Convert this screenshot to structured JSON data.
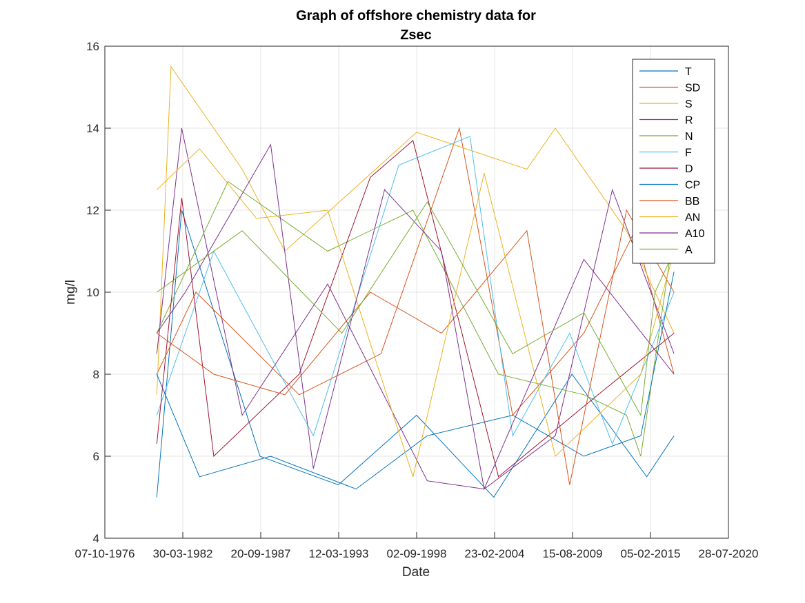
{
  "chart_data": {
    "type": "line",
    "title": [
      "Graph of offshore chemistry data for",
      "Zsec"
    ],
    "xlabel": "Date",
    "ylabel": "mg/l",
    "xlim": [
      "07-10-1976",
      "28-07-2020"
    ],
    "ylim": [
      4,
      16
    ],
    "x_ticks": [
      "07-10-1976",
      "30-03-1982",
      "20-09-1987",
      "12-03-1993",
      "02-09-1998",
      "23-02-2004",
      "15-08-2009",
      "05-02-2015",
      "28-07-2020"
    ],
    "y_ticks": [
      4,
      6,
      8,
      10,
      12,
      14,
      16
    ],
    "grid": true,
    "legend_position": "top-right",
    "series": [
      {
        "name": "T",
        "color": "#0072BD",
        "x": [
          "01-06-1980",
          "01-03-1982",
          "01-09-1987",
          "01-03-1993",
          "01-09-1998",
          "01-02-2004",
          "01-08-2009",
          "01-11-2014",
          "01-10-2016"
        ],
        "y": [
          5.0,
          12.0,
          6.0,
          5.3,
          7.0,
          5.0,
          8.0,
          5.5,
          6.5
        ]
      },
      {
        "name": "SD",
        "color": "#D95319",
        "x": [
          "01-06-1980",
          "01-03-1983",
          "01-06-1990",
          "01-03-1996",
          "01-09-2001",
          "01-06-2005",
          "01-06-2010",
          "01-01-2014",
          "01-10-2016"
        ],
        "y": [
          8.0,
          10.0,
          7.5,
          8.5,
          14.0,
          7.0,
          9.0,
          11.5,
          8.0
        ]
      },
      {
        "name": "S",
        "color": "#EDB120",
        "x": [
          "01-06-1980",
          "01-06-1981",
          "01-06-1986",
          "01-06-1989",
          "01-09-1998",
          "01-06-2006",
          "01-06-2008",
          "01-06-2013",
          "01-10-2016"
        ],
        "y": [
          7.5,
          15.5,
          13.0,
          11.0,
          13.9,
          13.0,
          14.0,
          11.5,
          9.0
        ]
      },
      {
        "name": "R",
        "color": "#7E2F8E",
        "x": [
          "01-06-1980",
          "01-03-1982",
          "01-06-1986",
          "01-06-1992",
          "01-06-1999",
          "01-06-2003",
          "01-06-2008",
          "01-06-2012",
          "01-10-2016"
        ],
        "y": [
          8.5,
          14.0,
          7.0,
          10.2,
          5.4,
          5.2,
          6.5,
          12.5,
          8.5
        ]
      },
      {
        "name": "N",
        "color": "#77AC30",
        "x": [
          "01-06-1980",
          "01-06-1985",
          "01-06-1992",
          "01-06-1998",
          "01-06-2004",
          "01-06-2010",
          "01-06-2013",
          "01-06-2014",
          "01-10-2016"
        ],
        "y": [
          9.0,
          12.7,
          11.0,
          12.0,
          8.0,
          7.5,
          7.0,
          6.0,
          11.5
        ]
      },
      {
        "name": "F",
        "color": "#4DBEEE",
        "x": [
          "01-06-1980",
          "01-06-1984",
          "01-06-1991",
          "01-06-1997",
          "01-06-2002",
          "01-06-2005",
          "01-06-2009",
          "01-06-2012",
          "01-10-2016"
        ],
        "y": [
          7.0,
          11.0,
          6.5,
          13.1,
          13.8,
          6.5,
          9.0,
          6.3,
          10.0
        ]
      },
      {
        "name": "D",
        "color": "#A2142F",
        "x": [
          "01-06-1980",
          "01-03-1982",
          "01-06-1984",
          "01-06-1990",
          "01-06-1995",
          "01-06-1998",
          "01-06-2004",
          "01-06-2011",
          "01-10-2016"
        ],
        "y": [
          6.3,
          12.3,
          6.0,
          8.0,
          12.8,
          13.7,
          5.5,
          7.5,
          9.0
        ]
      },
      {
        "name": "CP",
        "color": "#0072BD",
        "x": [
          "01-06-1980",
          "01-06-1983",
          "01-06-1988",
          "01-06-1994",
          "01-06-1999",
          "01-06-2005",
          "01-06-2010",
          "01-06-2014",
          "01-10-2016"
        ],
        "y": [
          8.0,
          5.5,
          6.0,
          5.2,
          6.5,
          7.0,
          6.0,
          6.5,
          10.5
        ]
      },
      {
        "name": "BB",
        "color": "#D95319",
        "x": [
          "01-06-1980",
          "01-06-1984",
          "01-06-1989",
          "01-06-1995",
          "01-06-2000",
          "01-06-2006",
          "01-06-2009",
          "01-06-2013",
          "01-10-2016"
        ],
        "y": [
          9.0,
          8.0,
          7.5,
          10.0,
          9.0,
          11.5,
          5.3,
          12.0,
          10.0
        ]
      },
      {
        "name": "AN",
        "color": "#EDB120",
        "x": [
          "01-06-1980",
          "01-06-1983",
          "01-06-1987",
          "01-06-1992",
          "01-06-1998",
          "01-06-2003",
          "01-06-2008",
          "01-06-2014",
          "01-10-2016"
        ],
        "y": [
          12.5,
          13.5,
          11.8,
          12.0,
          5.5,
          12.9,
          6.0,
          8.0,
          11.0
        ]
      },
      {
        "name": "A10",
        "color": "#7E2F8E",
        "x": [
          "01-06-1980",
          "01-06-1982",
          "01-06-1988",
          "01-06-1991",
          "01-06-1996",
          "01-06-2000",
          "01-06-2003",
          "01-06-2010",
          "01-10-2016"
        ],
        "y": [
          9.0,
          10.0,
          13.6,
          5.7,
          12.5,
          11.0,
          5.2,
          10.8,
          8.0
        ]
      },
      {
        "name": "A",
        "color": "#77AC30",
        "x": [
          "01-06-1980",
          "01-06-1986",
          "01-06-1993",
          "01-06-1999",
          "01-06-2005",
          "01-06-2010",
          "01-06-2014",
          "01-06-2015",
          "01-10-2016"
        ],
        "y": [
          10.0,
          11.5,
          9.0,
          12.2,
          8.5,
          9.5,
          7.0,
          10.0,
          11.0
        ]
      }
    ]
  }
}
